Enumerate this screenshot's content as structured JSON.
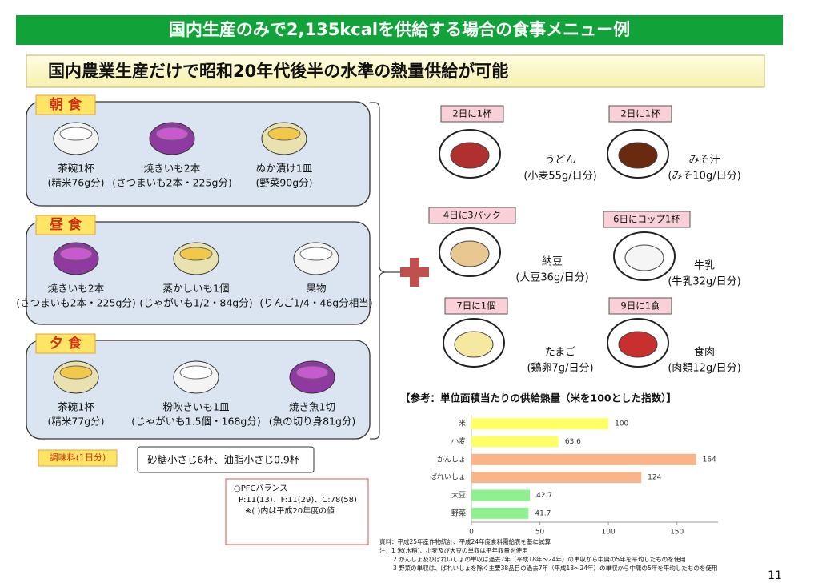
{
  "header": {
    "title": "国内生産のみで2,135kcalを供給する場合の食事メニュー例",
    "subtitle": "国内農業生産だけで昭和20年代後半の水準の熱量供給が可能"
  },
  "meals": [
    {
      "label": "朝 食",
      "items": [
        {
          "name": "茶碗1杯",
          "detail": "(精米76g分)"
        },
        {
          "name": "焼きいも2本",
          "detail": "(さつまいも2本・225g分)"
        },
        {
          "name": "ぬか漬け1皿",
          "detail": "(野菜90g分)"
        }
      ]
    },
    {
      "label": "昼 食",
      "items": [
        {
          "name": "焼きいも2本",
          "detail": "(さつまいも2本・225g分)"
        },
        {
          "name": "蒸かしいも1個",
          "detail": "(じゃがいも1/2・84g分)"
        },
        {
          "name": "果物",
          "detail": "(りんご1/4・46g分相当)"
        }
      ]
    },
    {
      "label": "夕 食",
      "items": [
        {
          "name": "茶碗1杯",
          "detail": "(精米77g分)"
        },
        {
          "name": "粉吹きいも1皿",
          "detail": "(じゃがいも1.5個・168g分)"
        },
        {
          "name": "焼き魚1切",
          "detail": "(魚の切り身81g分)"
        }
      ]
    }
  ],
  "seasoning": {
    "label": "調味料(1日分)",
    "text": "砂糖小さじ6杯、油脂小さじ0.9杯"
  },
  "pfc": {
    "lines": [
      "○PFCバランス",
      "P:11(13)、F:11(29)、C:78(58)",
      "※( )内は平成20年度の値"
    ]
  },
  "extras": [
    {
      "frequency": "2日に1杯",
      "name": "うどん",
      "detail": "(小麦55g/日分)"
    },
    {
      "frequency": "2日に1杯",
      "name": "みそ汁",
      "detail": "(みそ10g/日分)"
    },
    {
      "frequency": "4日に3パック",
      "name": "納豆",
      "detail": "(大豆36g/日分)"
    },
    {
      "frequency": "6日にコップ1杯",
      "name": "牛乳",
      "detail": "(牛乳32g/日分)"
    },
    {
      "frequency": "7日に1個",
      "name": "たまご",
      "detail": "(鶏卵7g/日分)"
    },
    {
      "frequency": "9日に1食",
      "name": "食肉",
      "detail": "(肉類12g/日分)"
    }
  ],
  "chart_data": {
    "type": "bar",
    "horizontal": true,
    "title": "【参考：単位面積当たりの供給熱量（米を100とした指数）】",
    "categories": [
      "米",
      "小麦",
      "かんしょ",
      "ばれいしょ",
      "大豆",
      "野菜"
    ],
    "values": [
      100,
      63.6,
      164,
      124,
      42.7,
      41.7
    ],
    "colors": [
      "#ffff66",
      "#ffff66",
      "#f9b48a",
      "#f9b48a",
      "#8ef08e",
      "#8ef08e"
    ],
    "xlim": [
      0,
      180
    ],
    "xticks": [
      0,
      50,
      100,
      150
    ]
  },
  "notes": [
    "資料：平成25年産作物統計、平成24年度食料需給表を基に試算",
    "注：1 米(水稲)、小麦及び大豆の単収は平年収量を使用",
    "2 かんしょ及びばれいしょの単収は過去7年（平成18年～24年）の単収から中庸の5年を平均したものを使用",
    "3 野菜の単収は、ばれいしょを除く主要38品目の過去7年（平成18～24年）の単収から中庸の5年を平均したものを使用"
  ],
  "page_number": "11"
}
